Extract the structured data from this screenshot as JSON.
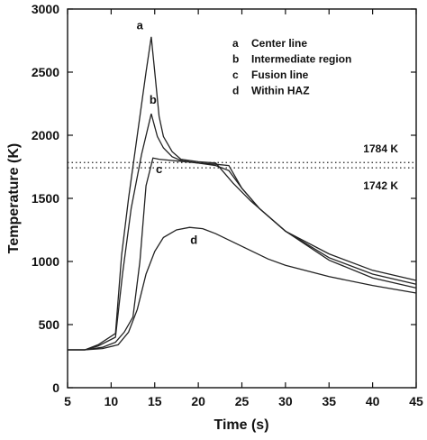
{
  "chart_data": {
    "type": "line",
    "title": "",
    "xlabel": "Time (s)",
    "ylabel": "Temperature (K)",
    "xlim": [
      5,
      45
    ],
    "ylim": [
      0,
      3000
    ],
    "xticks": [
      5,
      10,
      15,
      20,
      25,
      30,
      35,
      40,
      45
    ],
    "yticks": [
      0,
      500,
      1000,
      1500,
      2000,
      2500,
      3000
    ],
    "grid": false,
    "legend_position": "top-right",
    "legend": [
      {
        "key": "a",
        "text": "Center line"
      },
      {
        "key": "b",
        "text": "Intermediate region"
      },
      {
        "key": "c",
        "text": "Fusion line"
      },
      {
        "key": "d",
        "text": "Within HAZ"
      }
    ],
    "reference_lines": [
      {
        "y": 1784,
        "label": "1784 K"
      },
      {
        "y": 1742,
        "label": "1742 K"
      }
    ],
    "series": [
      {
        "name": "a",
        "x": [
          5,
          7,
          8.5,
          10.5,
          11.2,
          12,
          13,
          14,
          14.6,
          15,
          15.5,
          16,
          17,
          18,
          20,
          22,
          24,
          26,
          30,
          35,
          40,
          45
        ],
        "y": [
          300,
          300,
          340,
          430,
          1050,
          1500,
          2000,
          2500,
          2780,
          2500,
          2150,
          1990,
          1870,
          1810,
          1790,
          1780,
          1620,
          1480,
          1240,
          1060,
          930,
          850
        ]
      },
      {
        "name": "b",
        "x": [
          5,
          7,
          8.5,
          10.5,
          11.3,
          12.3,
          13.5,
          14.6,
          15.3,
          16,
          17,
          18,
          20,
          22,
          23.5,
          25,
          27,
          30,
          35,
          40,
          45
        ],
        "y": [
          300,
          300,
          330,
          400,
          900,
          1420,
          1850,
          2170,
          1990,
          1900,
          1830,
          1800,
          1780,
          1770,
          1760,
          1580,
          1420,
          1240,
          1030,
          900,
          820
        ]
      },
      {
        "name": "c",
        "x": [
          5,
          7,
          9,
          10.5,
          11.5,
          12.5,
          13.3,
          14,
          14.8,
          15.5,
          17,
          18.5,
          20,
          22,
          23.5,
          25,
          27,
          30,
          35,
          40,
          45
        ],
        "y": [
          300,
          300,
          320,
          360,
          440,
          560,
          1000,
          1600,
          1820,
          1810,
          1800,
          1790,
          1780,
          1760,
          1720,
          1580,
          1420,
          1240,
          1010,
          870,
          790
        ]
      },
      {
        "name": "d",
        "x": [
          5,
          7,
          9,
          10.8,
          12,
          13,
          14,
          15,
          16,
          17.5,
          19,
          20.5,
          22,
          25,
          28,
          30,
          35,
          40,
          45
        ],
        "y": [
          300,
          300,
          310,
          340,
          440,
          620,
          900,
          1080,
          1190,
          1250,
          1270,
          1260,
          1220,
          1120,
          1020,
          970,
          880,
          810,
          750
        ]
      }
    ],
    "curve_labels": [
      {
        "text": "a",
        "x": 13.3,
        "y": 2840
      },
      {
        "text": "b",
        "x": 14.8,
        "y": 2250
      },
      {
        "text": "c",
        "x": 15.5,
        "y": 1700
      },
      {
        "text": "d",
        "x": 19.5,
        "y": 1140
      }
    ]
  }
}
